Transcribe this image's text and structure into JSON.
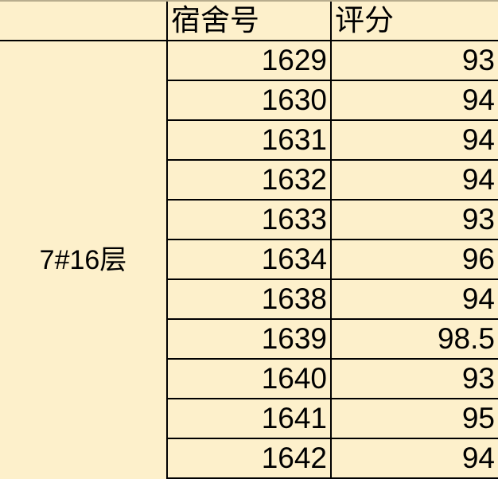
{
  "header": {
    "col1": "",
    "col2": "宿舍号",
    "col3": "评分"
  },
  "group_label": "7#16层",
  "rows": [
    {
      "room": "1629",
      "score": "93"
    },
    {
      "room": "1630",
      "score": "94"
    },
    {
      "room": "1631",
      "score": "94"
    },
    {
      "room": "1632",
      "score": "94"
    },
    {
      "room": "1633",
      "score": "93"
    },
    {
      "room": "1634",
      "score": "96"
    },
    {
      "room": "1638",
      "score": "94"
    },
    {
      "room": "1639",
      "score": "98.5"
    },
    {
      "room": "1640",
      "score": "93"
    },
    {
      "room": "1641",
      "score": "95"
    },
    {
      "room": "1642",
      "score": "94"
    }
  ],
  "colors": {
    "cell_background": "#fdf0cb",
    "border": "#000000"
  }
}
